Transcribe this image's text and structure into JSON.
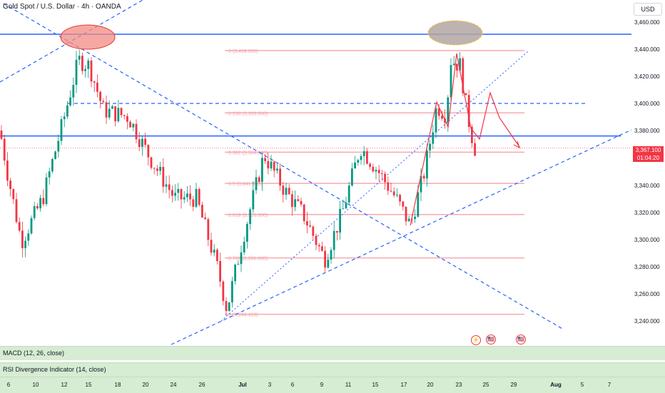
{
  "header": {
    "symbol_title": "Gold Spot / U.S. Dollar · 4h · OANDA",
    "currency_label": "USD"
  },
  "price_axis": {
    "labels": [
      "3,460.000",
      "3,440.000",
      "3,420.000",
      "3,400.000",
      "3,380.000",
      "3,340.000",
      "3,320.000",
      "3,300.000",
      "3,280.000",
      "3,260.000",
      "3,240.000"
    ],
    "current_price": "3,367.100",
    "countdown": "01:04:20"
  },
  "time_axis": {
    "labels": [
      "6",
      "10",
      "12",
      "15",
      "18",
      "20",
      "24",
      "26",
      "Jul",
      "3",
      "6",
      "9",
      "11",
      "15",
      "17",
      "20",
      "23",
      "25",
      "29",
      "Aug",
      "5",
      "7"
    ]
  },
  "indicators": {
    "macd_label": "MACD (12, 26, close)",
    "rsi_label": "RSI Divergence Indicator (14, close)"
  },
  "fib_labels": [
    "0 (3,439.000)",
    "0.236 (3,393.000)",
    "0.382 (3,364.000)",
    "0.5 (3,341.000)",
    "0.618 (3,318.000)",
    "0.786 (3,286.000)",
    "1 (3,244.410)"
  ],
  "colors": {
    "candle_up": "#089981",
    "candle_down": "#f23645",
    "trend_line": "#2962ff",
    "fib_line": "#f7a9b0",
    "projection": "#f23645",
    "ellipse_left": "#f28b82",
    "ellipse_right": "#b2a6a2"
  },
  "events": [
    {
      "icon": "lightning-icon",
      "glyph": "⚡"
    },
    {
      "icon": "us-flag-icon",
      "glyph": "🇺🇸"
    },
    {
      "icon": "us-flag-icon",
      "glyph": "🇺🇸"
    }
  ]
}
